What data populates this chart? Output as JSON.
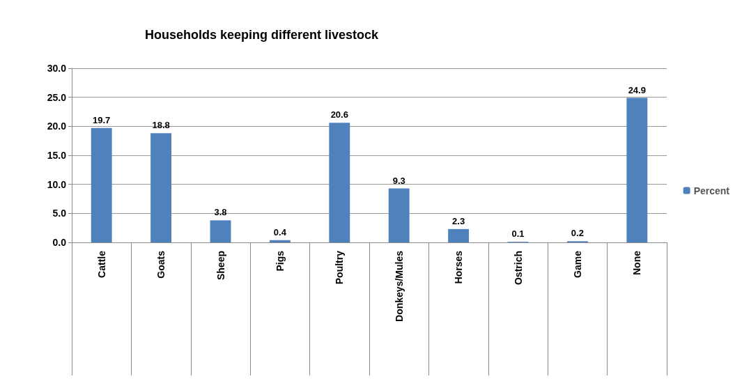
{
  "chart_data": {
    "type": "bar",
    "title": "Households keeping different livestock",
    "categories": [
      "Cattle",
      "Goats",
      "Sheep",
      "Pigs",
      "Poultry",
      "Donkeys/Mules",
      "Horses",
      "Ostrich",
      "Game",
      "None"
    ],
    "series": [
      {
        "name": "Percent",
        "color": "#4f81bd",
        "values": [
          19.7,
          18.8,
          3.8,
          0.4,
          20.6,
          9.3,
          2.3,
          0.1,
          0.2,
          24.9
        ]
      }
    ],
    "ylim": [
      0,
      30
    ],
    "yticks": [
      {
        "value": 0,
        "label": "0.0"
      },
      {
        "value": 5,
        "label": "5.0"
      },
      {
        "value": 10,
        "label": "10.0"
      },
      {
        "value": 15,
        "label": "15.0"
      },
      {
        "value": 20,
        "label": "20.0"
      },
      {
        "value": 25,
        "label": "25.0"
      },
      {
        "value": 30,
        "label": "30.0"
      }
    ],
    "grid": "y",
    "legend": "right",
    "data_labels": true
  }
}
